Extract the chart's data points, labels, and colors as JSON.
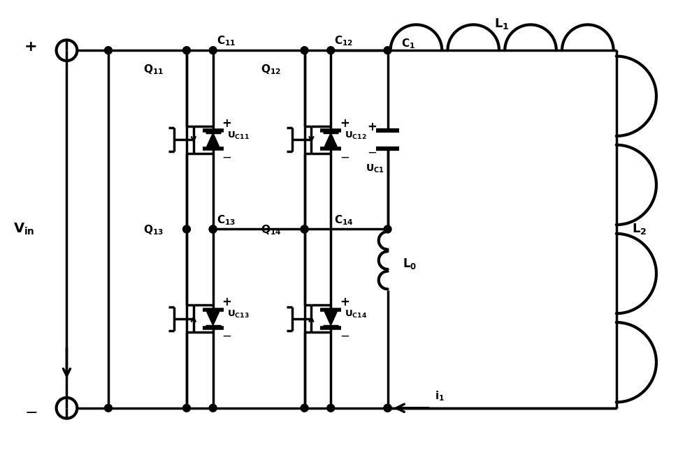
{
  "bg_color": "#ffffff",
  "line_color": "#000000",
  "lw": 2.5,
  "fig_width": 10.0,
  "fig_height": 6.55
}
